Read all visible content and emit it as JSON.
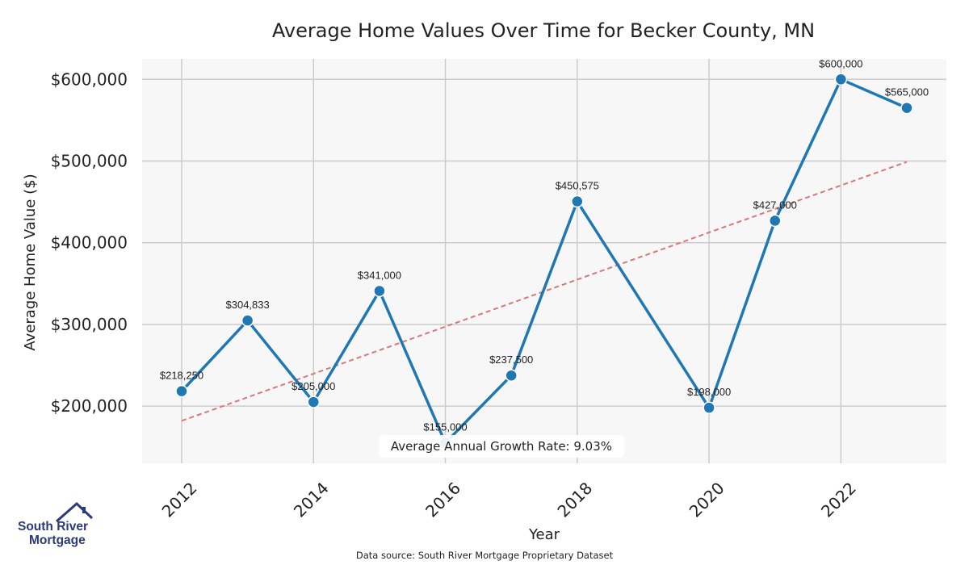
{
  "chart_data": {
    "type": "line",
    "title": "Average Home Values Over Time for Becker County, MN",
    "xlabel": "Year",
    "ylabel": "Average Home Value ($)",
    "x": [
      2012,
      2013,
      2014,
      2015,
      2016,
      2017,
      2018,
      2020,
      2021,
      2022,
      2023
    ],
    "values": [
      218250,
      304833,
      205000,
      341000,
      155000,
      237500,
      450575,
      198000,
      427000,
      600000,
      565000
    ],
    "data_labels": [
      "$218,250",
      "$304,833",
      "$205,000",
      "$341,000",
      "$155,000",
      "$237,500",
      "$450,575",
      "$198,000",
      "$427,000",
      "$600,000",
      "$565,000"
    ],
    "xlim": [
      2011.4,
      2023.6
    ],
    "ylim": [
      130000,
      625000
    ],
    "xticks": [
      2012,
      2014,
      2016,
      2018,
      2020,
      2022
    ],
    "xtick_labels": [
      "2012",
      "2014",
      "2016",
      "2018",
      "2020",
      "2022"
    ],
    "yticks": [
      200000,
      300000,
      400000,
      500000,
      600000
    ],
    "ytick_labels": [
      "$200,000",
      "$300,000",
      "$400,000",
      "$500,000",
      "$600,000"
    ],
    "grid": true,
    "line_color": "#1f77b4",
    "trend": {
      "start": [
        2012,
        182000
      ],
      "end": [
        2023,
        499000
      ],
      "color": "#d9777a"
    },
    "annotation": "Average Annual Growth Rate: 9.03%"
  },
  "footer": {
    "source": "Data source: South River Mortgage Proprietary Dataset"
  },
  "logo": {
    "line1": "South River",
    "line2": "Mortgage",
    "color": "#2b3a7a",
    "icon": "house-roof-icon"
  }
}
